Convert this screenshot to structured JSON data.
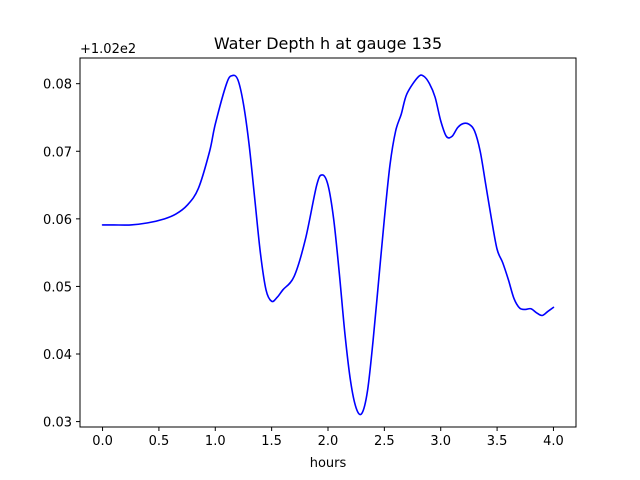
{
  "chart_data": {
    "type": "line",
    "title": "Water Depth h at gauge 135",
    "xlabel": "hours",
    "ylabel": "",
    "y_offset_label": "+1.02e2",
    "y_offset": 102,
    "xlim": [
      -0.2,
      4.2
    ],
    "ylim": [
      0.0292,
      0.0838
    ],
    "xticks": [
      0.0,
      0.5,
      1.0,
      1.5,
      2.0,
      2.5,
      3.0,
      3.5,
      4.0
    ],
    "xtick_labels": [
      "0.0",
      "0.5",
      "1.0",
      "1.5",
      "2.0",
      "2.5",
      "3.0",
      "3.5",
      "4.0"
    ],
    "yticks": [
      0.03,
      0.04,
      0.05,
      0.06,
      0.07,
      0.08
    ],
    "ytick_labels": [
      "0.03",
      "0.04",
      "0.05",
      "0.06",
      "0.07",
      "0.08"
    ],
    "grid": false,
    "legend": "none",
    "series": [
      {
        "color": "#0000ff",
        "x": [
          0.0,
          0.1,
          0.25,
          0.4,
          0.55,
          0.65,
          0.75,
          0.85,
          0.95,
          1.0,
          1.1,
          1.15,
          1.2,
          1.25,
          1.3,
          1.35,
          1.4,
          1.45,
          1.5,
          1.55,
          1.6,
          1.7,
          1.8,
          1.9,
          1.95,
          2.0,
          2.05,
          2.1,
          2.15,
          2.2,
          2.25,
          2.3,
          2.35,
          2.4,
          2.45,
          2.5,
          2.55,
          2.6,
          2.65,
          2.7,
          2.8,
          2.85,
          2.9,
          2.95,
          3.0,
          3.05,
          3.1,
          3.15,
          3.2,
          3.25,
          3.3,
          3.35,
          3.4,
          3.45,
          3.5,
          3.55,
          3.6,
          3.65,
          3.7,
          3.75,
          3.8,
          3.85,
          3.9,
          3.95,
          4.0
        ],
        "y": [
          0.0591,
          0.0591,
          0.0591,
          0.0594,
          0.06,
          0.0607,
          0.062,
          0.0645,
          0.07,
          0.074,
          0.08,
          0.0812,
          0.0806,
          0.077,
          0.071,
          0.063,
          0.055,
          0.0495,
          0.0478,
          0.0484,
          0.0495,
          0.0515,
          0.057,
          0.065,
          0.0665,
          0.065,
          0.06,
          0.052,
          0.043,
          0.036,
          0.032,
          0.0312,
          0.0345,
          0.042,
          0.051,
          0.06,
          0.068,
          0.073,
          0.0755,
          0.0785,
          0.081,
          0.0811,
          0.08,
          0.078,
          0.0745,
          0.0722,
          0.0722,
          0.0735,
          0.0741,
          0.074,
          0.073,
          0.07,
          0.065,
          0.06,
          0.0555,
          0.0535,
          0.051,
          0.0482,
          0.0468,
          0.0466,
          0.0467,
          0.0461,
          0.0457,
          0.0463,
          0.0469
        ]
      }
    ]
  }
}
